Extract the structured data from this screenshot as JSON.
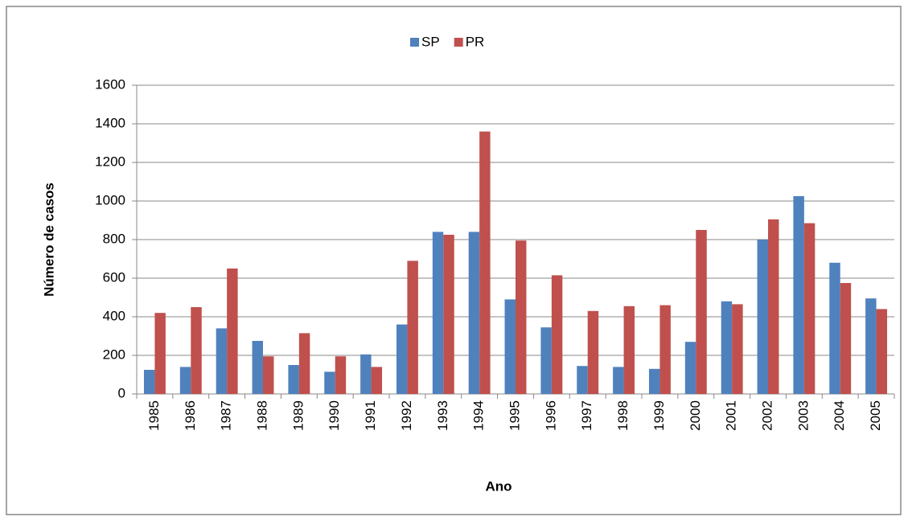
{
  "chart_data": {
    "type": "bar",
    "x_label": "Ano",
    "y_label": "Número de casos",
    "categories": [
      "1985",
      "1986",
      "1987",
      "1988",
      "1989",
      "1990",
      "1991",
      "1992",
      "1993",
      "1994",
      "1995",
      "1996",
      "1997",
      "1998",
      "1999",
      "2000",
      "2001",
      "2002",
      "2003",
      "2004",
      "2005"
    ],
    "series": [
      {
        "name": "SP",
        "color": "#4f81bd",
        "values": [
          125,
          140,
          340,
          275,
          150,
          115,
          205,
          360,
          840,
          840,
          490,
          345,
          145,
          140,
          130,
          270,
          480,
          800,
          1025,
          680,
          495
        ]
      },
      {
        "name": "PR",
        "color": "#c0504d",
        "values": [
          420,
          450,
          650,
          195,
          315,
          195,
          140,
          690,
          825,
          1360,
          795,
          615,
          430,
          455,
          460,
          850,
          465,
          905,
          885,
          575,
          440
        ]
      }
    ],
    "ylim": [
      0,
      1600
    ],
    "yticks": [
      0,
      200,
      400,
      600,
      800,
      1000,
      1200,
      1400,
      1600
    ],
    "grid": true,
    "legend": "top"
  }
}
